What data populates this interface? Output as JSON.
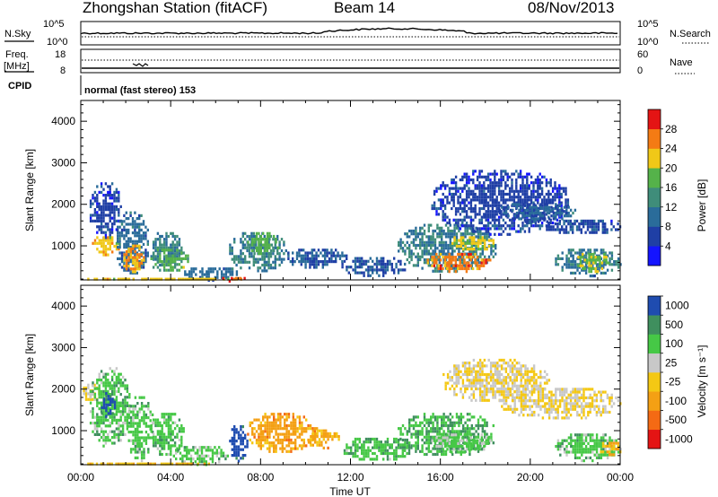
{
  "header": {
    "station": "Zhongshan Station (fitACF)",
    "beam": "Beam 14",
    "date": "08/Nov/2013"
  },
  "top_panels": {
    "nsky_label": "N.Sky",
    "nsearch_label": "N.Search",
    "noise_ticks": [
      "10^5",
      "10^0"
    ],
    "freq_label": "Freq.",
    "freq_unit": "[MHz]",
    "freq_ticks": [
      "18",
      "8"
    ],
    "nave_label": "Nave",
    "nave_ticks": [
      "60",
      "0"
    ],
    "cpid_label": "CPID",
    "cpid_text": "normal (fast stereo) 153"
  },
  "colors": {
    "power": [
      "#1414ff",
      "#1f3fa5",
      "#2a6c9a",
      "#3f8d7a",
      "#55b24a",
      "#f0c818",
      "#f47b14",
      "#e41414"
    ],
    "velocity": [
      "#e41414",
      "#f46a14",
      "#f4a014",
      "#f4c814",
      "#c8c8c8",
      "#46c846",
      "#3f8f5e",
      "#1f4cb0"
    ]
  },
  "chart_data": [
    {
      "type": "heatmap",
      "title": "",
      "ylabel": "Slant Range [km]",
      "xlabel": "",
      "x_ticks": [
        "00:00",
        "04:00",
        "08:00",
        "12:00",
        "16:00",
        "20:00",
        "00:00"
      ],
      "y_ticks": [
        1000,
        2000,
        3000,
        4000
      ],
      "xlim": [
        0,
        24
      ],
      "ylim": [
        180,
        4500
      ],
      "colorbar": {
        "label": "Power [dB]",
        "ticks": [
          "4",
          "8",
          "12",
          "16",
          "20",
          "24",
          "28"
        ],
        "range": [
          0,
          32
        ]
      },
      "blobs": [
        {
          "t0": 0.3,
          "t1": 1.8,
          "r0": 1200,
          "r1": 2600,
          "v": 6
        },
        {
          "t0": 0.4,
          "t1": 1.7,
          "r0": 800,
          "r1": 1300,
          "v": 22
        },
        {
          "t0": 1.5,
          "t1": 3.0,
          "r0": 300,
          "r1": 1900,
          "v": 10
        },
        {
          "t0": 1.8,
          "t1": 2.8,
          "r0": 400,
          "r1": 1100,
          "v": 24
        },
        {
          "t0": 3.0,
          "t1": 4.5,
          "r0": 500,
          "r1": 1400,
          "v": 12
        },
        {
          "t0": 3.0,
          "t1": 4.8,
          "r0": 400,
          "r1": 1000,
          "v": 17
        },
        {
          "t0": 4.5,
          "t1": 7.0,
          "r0": 200,
          "r1": 550,
          "v": 10
        },
        {
          "t0": 0.0,
          "t1": 7.2,
          "r0": 180,
          "r1": 300,
          "v": 22
        },
        {
          "t0": 6.0,
          "t1": 7.3,
          "r0": 180,
          "r1": 320,
          "v": 28
        },
        {
          "t0": 6.5,
          "t1": 9.2,
          "r0": 400,
          "r1": 1400,
          "v": 12
        },
        {
          "t0": 7.3,
          "t1": 8.8,
          "r0": 800,
          "r1": 1400,
          "v": 17
        },
        {
          "t0": 9.0,
          "t1": 11.8,
          "r0": 500,
          "r1": 1000,
          "v": 8
        },
        {
          "t0": 11.5,
          "t1": 14.5,
          "r0": 300,
          "r1": 800,
          "v": 8
        },
        {
          "t0": 14.0,
          "t1": 18.5,
          "r0": 400,
          "r1": 1600,
          "v": 12
        },
        {
          "t0": 15.3,
          "t1": 18.2,
          "r0": 400,
          "r1": 900,
          "v": 26
        },
        {
          "t0": 16.3,
          "t1": 18.4,
          "r0": 900,
          "r1": 1300,
          "v": 21
        },
        {
          "t0": 15.5,
          "t1": 21.8,
          "r0": 1300,
          "r1": 2900,
          "v": 6
        },
        {
          "t0": 18.5,
          "t1": 22.0,
          "r0": 1600,
          "r1": 2100,
          "v": 9
        },
        {
          "t0": 20.5,
          "t1": 24.0,
          "r0": 1300,
          "r1": 1700,
          "v": 7
        },
        {
          "t0": 21.0,
          "t1": 24.0,
          "r0": 300,
          "r1": 1000,
          "v": 11
        },
        {
          "t0": 22.0,
          "t1": 23.5,
          "r0": 400,
          "r1": 900,
          "v": 19
        }
      ]
    },
    {
      "type": "heatmap",
      "title": "",
      "ylabel": "Slant Range [km]",
      "xlabel": "Time UT",
      "x_ticks": [
        "00:00",
        "04:00",
        "08:00",
        "12:00",
        "16:00",
        "20:00",
        "00:00"
      ],
      "y_ticks": [
        1000,
        2000,
        3000,
        4000
      ],
      "xlim": [
        0,
        24
      ],
      "ylim": [
        180,
        4500
      ],
      "colorbar": {
        "label": "Velocity [m s⁻¹]",
        "ticks": [
          "-1000",
          "-500",
          "-100",
          "-25",
          "25",
          "100",
          "500",
          "1000"
        ],
        "range": [
          -4,
          4
        ]
      },
      "blobs": [
        {
          "t0": 0.0,
          "t1": 0.8,
          "r0": 1700,
          "r1": 2200,
          "v": 0
        },
        {
          "t0": 0.3,
          "t1": 2.2,
          "r0": 600,
          "r1": 2600,
          "v": 1.5
        },
        {
          "t0": 0.8,
          "t1": 1.5,
          "r0": 1300,
          "r1": 2000,
          "v": 3.5
        },
        {
          "t0": 2.0,
          "t1": 3.2,
          "r0": 300,
          "r1": 1900,
          "v": 1.5
        },
        {
          "t0": 3.0,
          "t1": 4.6,
          "r0": 400,
          "r1": 1500,
          "v": 1.6
        },
        {
          "t0": 4.0,
          "t1": 6.5,
          "r0": 200,
          "r1": 700,
          "v": 1.4
        },
        {
          "t0": 0.0,
          "t1": 6.0,
          "r0": 180,
          "r1": 300,
          "v": -0.7
        },
        {
          "t0": 6.5,
          "t1": 7.4,
          "r0": 300,
          "r1": 1200,
          "v": 3.5
        },
        {
          "t0": 7.3,
          "t1": 10.5,
          "r0": 500,
          "r1": 1500,
          "v": -1.5
        },
        {
          "t0": 10.0,
          "t1": 11.5,
          "r0": 600,
          "r1": 1100,
          "v": -1.3
        },
        {
          "t0": 11.5,
          "t1": 14.8,
          "r0": 300,
          "r1": 900,
          "v": 1.7
        },
        {
          "t0": 14.0,
          "t1": 18.5,
          "r0": 400,
          "r1": 1500,
          "v": 2.0
        },
        {
          "t0": 15.5,
          "t1": 18.3,
          "r0": 500,
          "r1": 1000,
          "v": 1.2
        },
        {
          "t0": 16.0,
          "t1": 20.8,
          "r0": 1700,
          "r1": 2800,
          "v": 0
        },
        {
          "t0": 18.5,
          "t1": 24.0,
          "r0": 1300,
          "r1": 2100,
          "v": 0
        },
        {
          "t0": 21.0,
          "t1": 24.0,
          "r0": 300,
          "r1": 1000,
          "v": 1.5
        },
        {
          "t0": 23.0,
          "t1": 24.0,
          "r0": 400,
          "r1": 800,
          "v": -1.2
        }
      ]
    }
  ]
}
